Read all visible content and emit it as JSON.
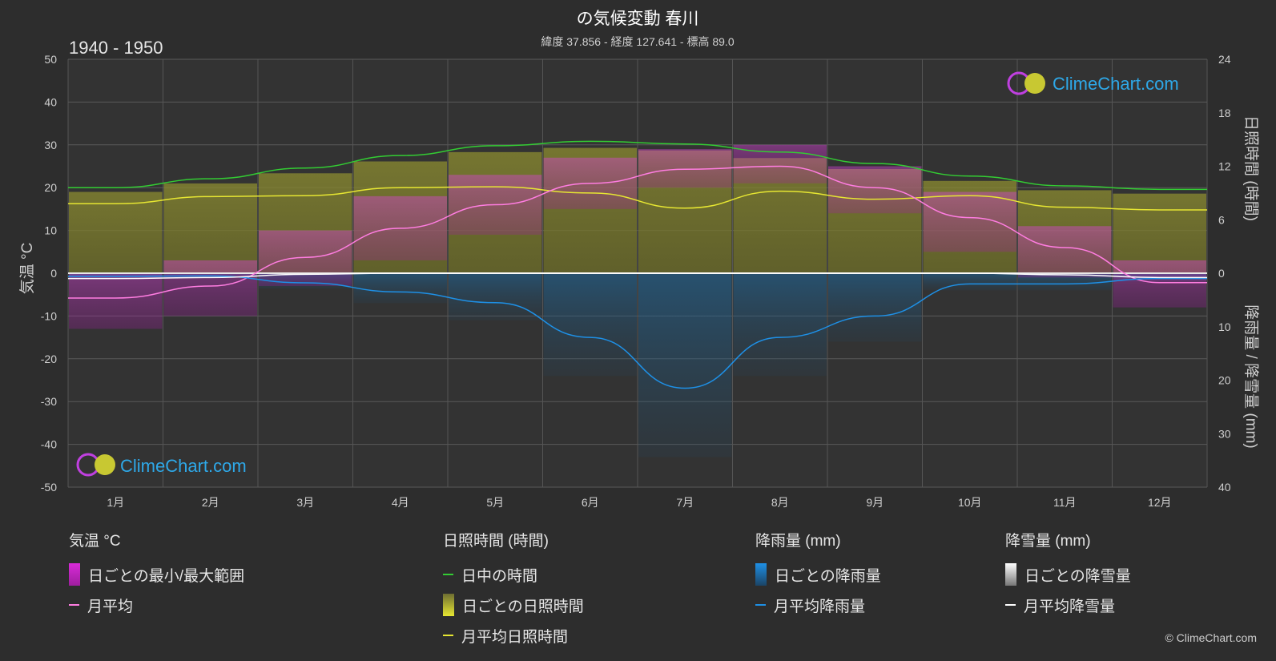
{
  "header": {
    "title": "の気候変動 春川",
    "subtitle": "緯度 37.856 - 経度 127.641 - 標高 89.0",
    "period": "1940 - 1950"
  },
  "logo_text": "ClimeChart.com",
  "copyright": "© ClimeChart.com",
  "axes": {
    "left_label": "気温 °C",
    "right_top_label": "日照時間 (時間)",
    "right_bottom_label": "降雨量 / 降雪量 (mm)",
    "left_ticks": [
      50,
      40,
      30,
      20,
      10,
      0,
      -10,
      -20,
      -30,
      -40,
      -50
    ],
    "right_top_ticks": [
      24,
      18,
      12,
      6,
      0
    ],
    "right_bottom_ticks": [
      10,
      20,
      30,
      40
    ]
  },
  "chart_data": {
    "type": "line",
    "categories": [
      "1月",
      "2月",
      "3月",
      "4月",
      "5月",
      "6月",
      "7月",
      "8月",
      "9月",
      "10月",
      "11月",
      "12月"
    ],
    "temp_ylim": [
      -50,
      50
    ],
    "sun_ylim": [
      0,
      24
    ],
    "precip_ylim": [
      0,
      40
    ],
    "series": [
      {
        "name": "日中の時間",
        "axis": "sun",
        "color": "#33cc33",
        "values": [
          9.6,
          10.6,
          11.8,
          13.2,
          14.3,
          14.8,
          14.5,
          13.6,
          12.3,
          10.9,
          9.8,
          9.4
        ]
      },
      {
        "name": "月平均日照時間",
        "axis": "sun",
        "color": "#e6e632",
        "values": [
          7.8,
          8.6,
          8.7,
          9.6,
          9.7,
          9.0,
          7.3,
          9.2,
          8.3,
          8.7,
          7.4,
          7.1
        ]
      },
      {
        "name": "月平均",
        "axis": "temp",
        "color": "#ff7de1",
        "values": [
          -5.8,
          -3.0,
          3.7,
          10.5,
          16.0,
          21.0,
          24.3,
          25.0,
          20.0,
          13.0,
          6.0,
          -2.2
        ]
      },
      {
        "name": "月平均降雨量",
        "axis": "precip",
        "color": "#1e90e6",
        "values": [
          0.6,
          0.5,
          1.8,
          3.5,
          5.5,
          12.0,
          21.5,
          12.0,
          8.0,
          2.0,
          2.0,
          1.0
        ]
      },
      {
        "name": "月平均降雪量",
        "axis": "precip",
        "color": "#ffffff",
        "values": [
          1.0,
          0.8,
          0.2,
          0,
          0,
          0,
          0,
          0,
          0,
          0,
          0.3,
          0.8
        ]
      }
    ],
    "daily_temp_range": {
      "name": "日ごとの最小/最大範囲",
      "min": [
        -13,
        -10,
        -3,
        3,
        9,
        15,
        20,
        21,
        14,
        5,
        -1,
        -8
      ],
      "max": [
        0,
        3,
        10,
        18,
        23,
        27,
        29,
        30,
        25,
        19,
        11,
        3
      ]
    },
    "grid": true
  },
  "legend": {
    "groups": [
      {
        "title": "気温 °C",
        "items": [
          {
            "label": "日ごとの最小/最大範囲",
            "kind": "box",
            "color": "#d92bd9",
            "color2": "#9e1e9e"
          },
          {
            "label": "月平均",
            "kind": "line",
            "color": "#ff7de1"
          }
        ]
      },
      {
        "title": "日照時間 (時間)",
        "items": [
          {
            "label": "日中の時間",
            "kind": "line",
            "color": "#33cc33"
          },
          {
            "label": "日ごとの日照時間",
            "kind": "box",
            "color": "#e6e632",
            "color2": "#6e6e32"
          },
          {
            "label": "月平均日照時間",
            "kind": "line",
            "color": "#e6e632"
          }
        ]
      },
      {
        "title": "降雨量 (mm)",
        "items": [
          {
            "label": "日ごとの降雨量",
            "kind": "box",
            "color": "#1e90e6",
            "color2": "#1b4466"
          },
          {
            "label": "月平均降雨量",
            "kind": "line",
            "color": "#1e90e6"
          }
        ]
      },
      {
        "title": "降雪量 (mm)",
        "items": [
          {
            "label": "日ごとの降雪量",
            "kind": "box",
            "color": "#ffffff",
            "color2": "#777777"
          },
          {
            "label": "月平均降雪量",
            "kind": "line",
            "color": "#ffffff"
          }
        ]
      }
    ]
  }
}
